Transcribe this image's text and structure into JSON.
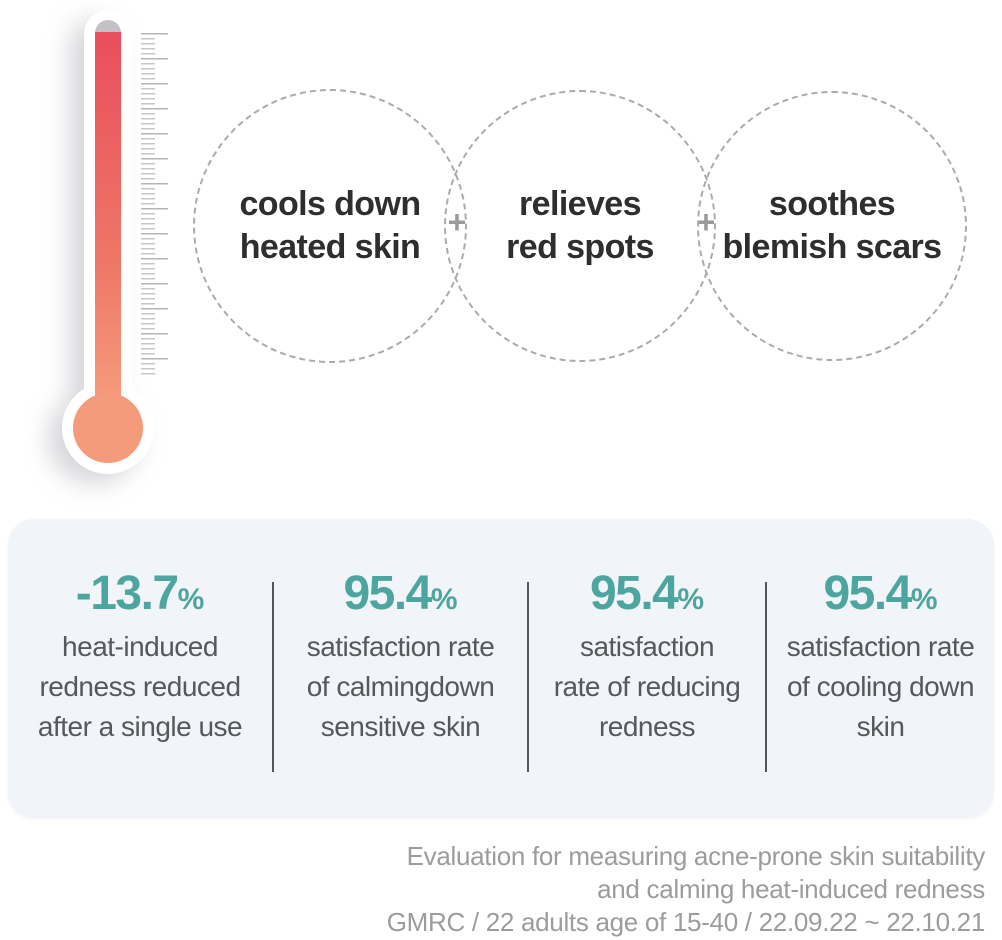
{
  "benefits": {
    "plus_sign": "+",
    "circles": [
      {
        "label": "cools down\nheated skin"
      },
      {
        "label": "relieves\nred spots"
      },
      {
        "label": "soothes\nblemish scars"
      }
    ]
  },
  "thermometer": {
    "fill_top_color": "#e94e5d",
    "fill_bottom_color": "#f49c7b",
    "cap_color": "#c2c2c6"
  },
  "stats": {
    "panel_bg_color": "#f1f4f8",
    "accent_color": "#4da59f",
    "items": [
      {
        "value": "-13.7",
        "unit": "%",
        "desc": "heat-induced\nredness reduced\nafter a single use"
      },
      {
        "value": "95.4",
        "unit": "%",
        "desc": "satisfaction rate\nof calmingdown\nsensitive skin"
      },
      {
        "value": "95.4",
        "unit": "%",
        "desc": "satisfaction\nrate of reducing\nredness"
      },
      {
        "value": "95.4",
        "unit": "%",
        "desc": "satisfaction rate\nof cooling down\nskin"
      }
    ]
  },
  "footnote": {
    "lines": [
      "Evaluation for measuring acne-prone skin suitability",
      "and calming heat-induced redness",
      "GMRC / 22 adults age of 15-40 / 22.09.22 ~ 22.10.21"
    ]
  }
}
